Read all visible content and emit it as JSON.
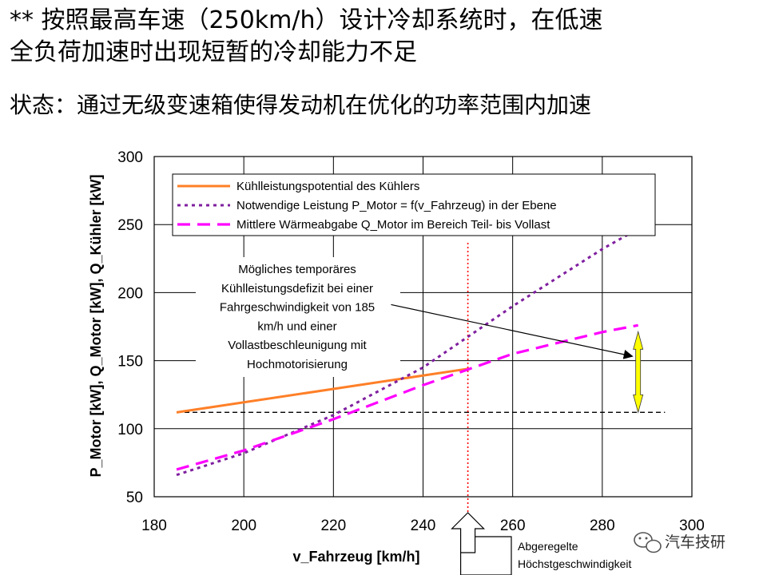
{
  "header": {
    "line1": "** 按照最高车速（250km/h）设计冷却系统时，在低速",
    "line2": "全负荷加速时出现短暂的冷却能力不足",
    "line3": "状态：通过无级变速箱使得发动机在优化的功率范围内加速"
  },
  "chart_data": {
    "type": "line",
    "title": "",
    "xlabel": "v_Fahrzeug [km/h]",
    "ylabel": "P_Motor [kW], Q_Motor [kW], Q_Kühler [kW]",
    "xlim": [
      180,
      300
    ],
    "ylim": [
      50,
      300
    ],
    "xticks": [
      180,
      200,
      220,
      240,
      260,
      280,
      300
    ],
    "yticks": [
      50,
      100,
      150,
      200,
      250,
      300
    ],
    "grid": true,
    "legend_position": "top",
    "series": [
      {
        "name": "Kühlleistungspotential des Kühlers",
        "color": "#ff7f27",
        "style": "solid",
        "x": [
          185,
          250
        ],
        "y": [
          112,
          144
        ]
      },
      {
        "name": "Notwendige Leistung P_Motor = f(v_Fahrzeug) in der Ebene",
        "color": "#7f1f9f",
        "style": "dotted",
        "x": [
          185,
          200,
          220,
          240,
          260,
          280,
          287
        ],
        "y": [
          66,
          82,
          110,
          145,
          190,
          232,
          245
        ]
      },
      {
        "name": "Mittlere Wärmeabgabe Q_Motor im Bereich Teil- bis Vollast",
        "color": "#ff00ff",
        "style": "dashed",
        "x": [
          185,
          200,
          220,
          240,
          260,
          280,
          288
        ],
        "y": [
          70,
          84,
          107,
          132,
          155,
          171,
          176
        ]
      }
    ],
    "reference_lines": {
      "horizontal_y": 112,
      "horizontal_x_range": [
        185,
        294
      ],
      "vertical_x": 250,
      "vertical_color": "#ff0000"
    },
    "double_arrow": {
      "x": 288,
      "y_range": [
        112,
        176
      ],
      "color": "#ffff00"
    },
    "pointer_arrow": {
      "from": [
        235,
        190
      ],
      "to": [
        286,
        172
      ]
    },
    "annotation_lines": [
      "Mögliches temporäres",
      "Kühlleistungsdefizit bei einer",
      "Fahrgeschwindigkeit von 185",
      "km/h und einer",
      "Vollastbeschleunigung mit",
      "Hochmotorisierung"
    ],
    "callout_lines": [
      "Abgeregelte",
      "Höchstgeschwindigkeit"
    ]
  },
  "watermark": {
    "text": "汽车技研",
    "icon": "wechat-icon"
  }
}
